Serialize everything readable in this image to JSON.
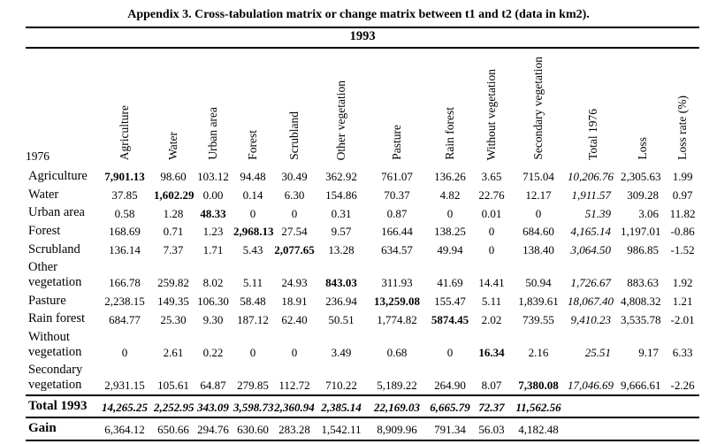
{
  "title": "Appendix 3. Cross-tabulation matrix or change matrix between t1 and t2 (data in km2).",
  "table": {
    "year_header": "1993",
    "row_axis_label": "1976",
    "columns": [
      "Agriculture",
      "Water",
      "Urban area",
      "Forest",
      "Scrubland",
      "Other vegetation",
      "Pasture",
      "Rain forest",
      "Without vegetation",
      "Secondary vegetation",
      "Total 1976",
      "Loss",
      "Loss rate (%)"
    ],
    "rows": [
      {
        "label": "Agriculture",
        "values": [
          "7,901.13",
          "98.60",
          "103.12",
          "94.48",
          "30.49",
          "362.92",
          "761.07",
          "136.26",
          "3.65",
          "715.04",
          "10,206.76",
          "2,305.63",
          "1.99"
        ]
      },
      {
        "label": "Water",
        "values": [
          "37.85",
          "1,602.29",
          "0.00",
          "0.14",
          "6.30",
          "154.86",
          "70.37",
          "4.82",
          "22.76",
          "12.17",
          "1,911.57",
          "309.28",
          "0.97"
        ]
      },
      {
        "label": "Urban area",
        "values": [
          "0.58",
          "1.28",
          "48.33",
          "0",
          "0",
          "0.31",
          "0.87",
          "0",
          "0.01",
          "0",
          "51.39",
          "3.06",
          "11.82"
        ]
      },
      {
        "label": "Forest",
        "values": [
          "168.69",
          "0.71",
          "1.23",
          "2,968.13",
          "27.54",
          "9.57",
          "166.44",
          "138.25",
          "0",
          "684.60",
          "4,165.14",
          "1,197.01",
          "-0.86"
        ]
      },
      {
        "label": "Scrubland",
        "values": [
          "136.14",
          "7.37",
          "1.71",
          "5.43",
          "2,077.65",
          "13.28",
          "634.57",
          "49.94",
          "0",
          "138.40",
          "3,064.50",
          "986.85",
          "-1.52"
        ]
      },
      {
        "label": "Other vegetation",
        "values": [
          "166.78",
          "259.82",
          "8.02",
          "5.11",
          "24.93",
          "843.03",
          "311.93",
          "41.69",
          "14.41",
          "50.94",
          "1,726.67",
          "883.63",
          "1.92"
        ]
      },
      {
        "label": "Pasture",
        "values": [
          "2,238.15",
          "149.35",
          "106.30",
          "58.48",
          "18.91",
          "236.94",
          "13,259.08",
          "155.47",
          "5.11",
          "1,839.61",
          "18,067.40",
          "4,808.32",
          "1.21"
        ]
      },
      {
        "label": "Rain forest",
        "values": [
          "684.77",
          "25.30",
          "9.30",
          "187.12",
          "62.40",
          "50.51",
          "1,774.82",
          "5874.45",
          "2.02",
          "739.55",
          "9,410.23",
          "3,535.78",
          "-2.01"
        ]
      },
      {
        "label": "Without vegetation",
        "values": [
          "0",
          "2.61",
          "0.22",
          "0",
          "0",
          "3.49",
          "0.68",
          "0",
          "16.34",
          "2.16",
          "25.51",
          "9.17",
          "6.33"
        ]
      },
      {
        "label": "Secondary vegetation",
        "values": [
          "2,931.15",
          "105.61",
          "64.87",
          "279.85",
          "112.72",
          "710.22",
          "5,189.22",
          "264.90",
          "8.07",
          "7,380.08",
          "17,046.69",
          "9,666.61",
          "-2.26"
        ]
      },
      {
        "label": "Total 1993",
        "values": [
          "14,265.25",
          "2,252.95",
          "343.09",
          "3,598.73",
          "2,360.94",
          "2,385.14",
          "22,169.03",
          "6,665.79",
          "72.37",
          "11,562.56",
          "",
          "",
          ""
        ]
      },
      {
        "label": "Gain",
        "values": [
          "6,364.12",
          "650.66",
          "294.76",
          "630.60",
          "283.28",
          "1,542.11",
          "8,909.96",
          "791.34",
          "56.03",
          "4,182.48",
          "",
          "",
          ""
        ]
      }
    ]
  }
}
